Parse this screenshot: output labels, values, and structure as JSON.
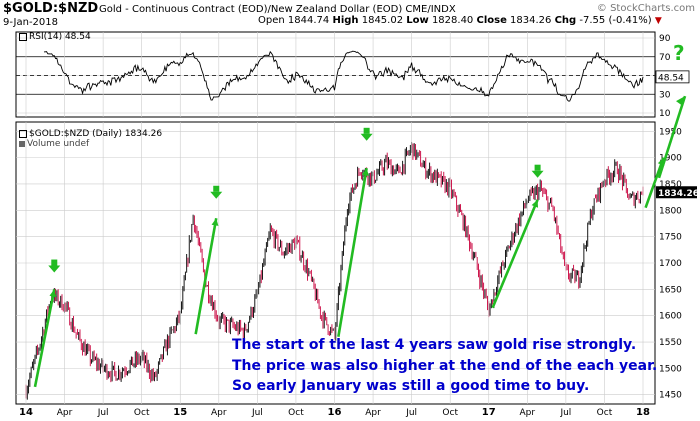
{
  "header": {
    "symbol": "$GOLD:$NZD",
    "description": "Gold - Continuous Contract (EOD)/New Zealand Dollar (EOD)  CME/INDX",
    "watermark": "© StockCharts.com",
    "date": "9-Jan-2018",
    "open_label": "Open",
    "open": "1844.74",
    "high_label": "High",
    "high": "1845.02",
    "low_label": "Low",
    "low": "1828.40",
    "close_label": "Close",
    "close": "1834.26",
    "chg_label": "Chg",
    "chg": "-7.55 (-0.41%)",
    "chg_marker": "▼"
  },
  "rsi_panel": {
    "legend": "RSI(14) 48.54",
    "current_value": "48.54",
    "y_ticks": [
      "90",
      "70",
      "50",
      "30",
      "10"
    ]
  },
  "price_panel": {
    "legend": "$GOLD:$NZD (Daily) 1834.26",
    "volume_legend": "Volume undef",
    "last_price": "1834.26",
    "y_ticks": [
      "1950",
      "1900",
      "1850",
      "1800",
      "1750",
      "1700",
      "1650",
      "1600",
      "1550",
      "1500",
      "1450"
    ]
  },
  "x_ticks": [
    "14",
    "Apr",
    "Jul",
    "Oct",
    "15",
    "Apr",
    "Jul",
    "Oct",
    "16",
    "Apr",
    "Jul",
    "Oct",
    "17",
    "Apr",
    "Jul",
    "Oct",
    "18"
  ],
  "annotation": {
    "lines": [
      "The start of the last 4 years saw gold rise strongly.",
      "The price was also higher at the end of the each year.",
      "So early January was still a good time to buy."
    ],
    "question_mark": "?"
  },
  "colors": {
    "up_bar": "#000000",
    "down_bar": "#c8003c",
    "arrow": "#22bb22",
    "annotation_text": "#0000cc",
    "grid": "#cccccc"
  },
  "chart_data": {
    "type": "line",
    "title": "$GOLD:$NZD Gold - Continuous Contract (EOD)/New Zealand Dollar (EOD)",
    "x_range": [
      "2014-01",
      "2018-01"
    ],
    "ylim": [
      1440,
      1960
    ],
    "series": [
      {
        "name": "$GOLD:$NZD (Daily)",
        "x": [
          "2014-01",
          "2014-02",
          "2014-03",
          "2014-04",
          "2014-05",
          "2014-06",
          "2014-07",
          "2014-08",
          "2014-09",
          "2014-10",
          "2014-11",
          "2014-12",
          "2015-01",
          "2015-02",
          "2015-03",
          "2015-04",
          "2015-05",
          "2015-06",
          "2015-07",
          "2015-08",
          "2015-09",
          "2015-10",
          "2015-11",
          "2015-12",
          "2016-01",
          "2016-02",
          "2016-03",
          "2016-04",
          "2016-05",
          "2016-06",
          "2016-07",
          "2016-08",
          "2016-09",
          "2016-10",
          "2016-11",
          "2016-12",
          "2017-01",
          "2017-02",
          "2017-03",
          "2017-04",
          "2017-05",
          "2017-06",
          "2017-07",
          "2017-08",
          "2017-09",
          "2017-10",
          "2017-11",
          "2017-12",
          "2018-01"
        ],
        "values": [
          1460,
          1540,
          1640,
          1620,
          1560,
          1520,
          1500,
          1490,
          1505,
          1520,
          1480,
          1550,
          1600,
          1790,
          1660,
          1590,
          1580,
          1570,
          1640,
          1760,
          1720,
          1740,
          1680,
          1600,
          1560,
          1810,
          1880,
          1860,
          1890,
          1870,
          1920,
          1880,
          1860,
          1840,
          1780,
          1700,
          1610,
          1690,
          1760,
          1820,
          1840,
          1800,
          1680,
          1670,
          1800,
          1860,
          1880,
          1820,
          1834
        ]
      }
    ],
    "rsi": {
      "name": "RSI(14)",
      "ylim": [
        10,
        90
      ],
      "reference_lines": [
        30,
        50,
        70
      ],
      "last": 48.54
    },
    "annotations": [
      "The start of the last 4 years saw gold rise strongly.",
      "The price was also higher at the end of the each year.",
      "So early January was still a good time to buy."
    ]
  }
}
